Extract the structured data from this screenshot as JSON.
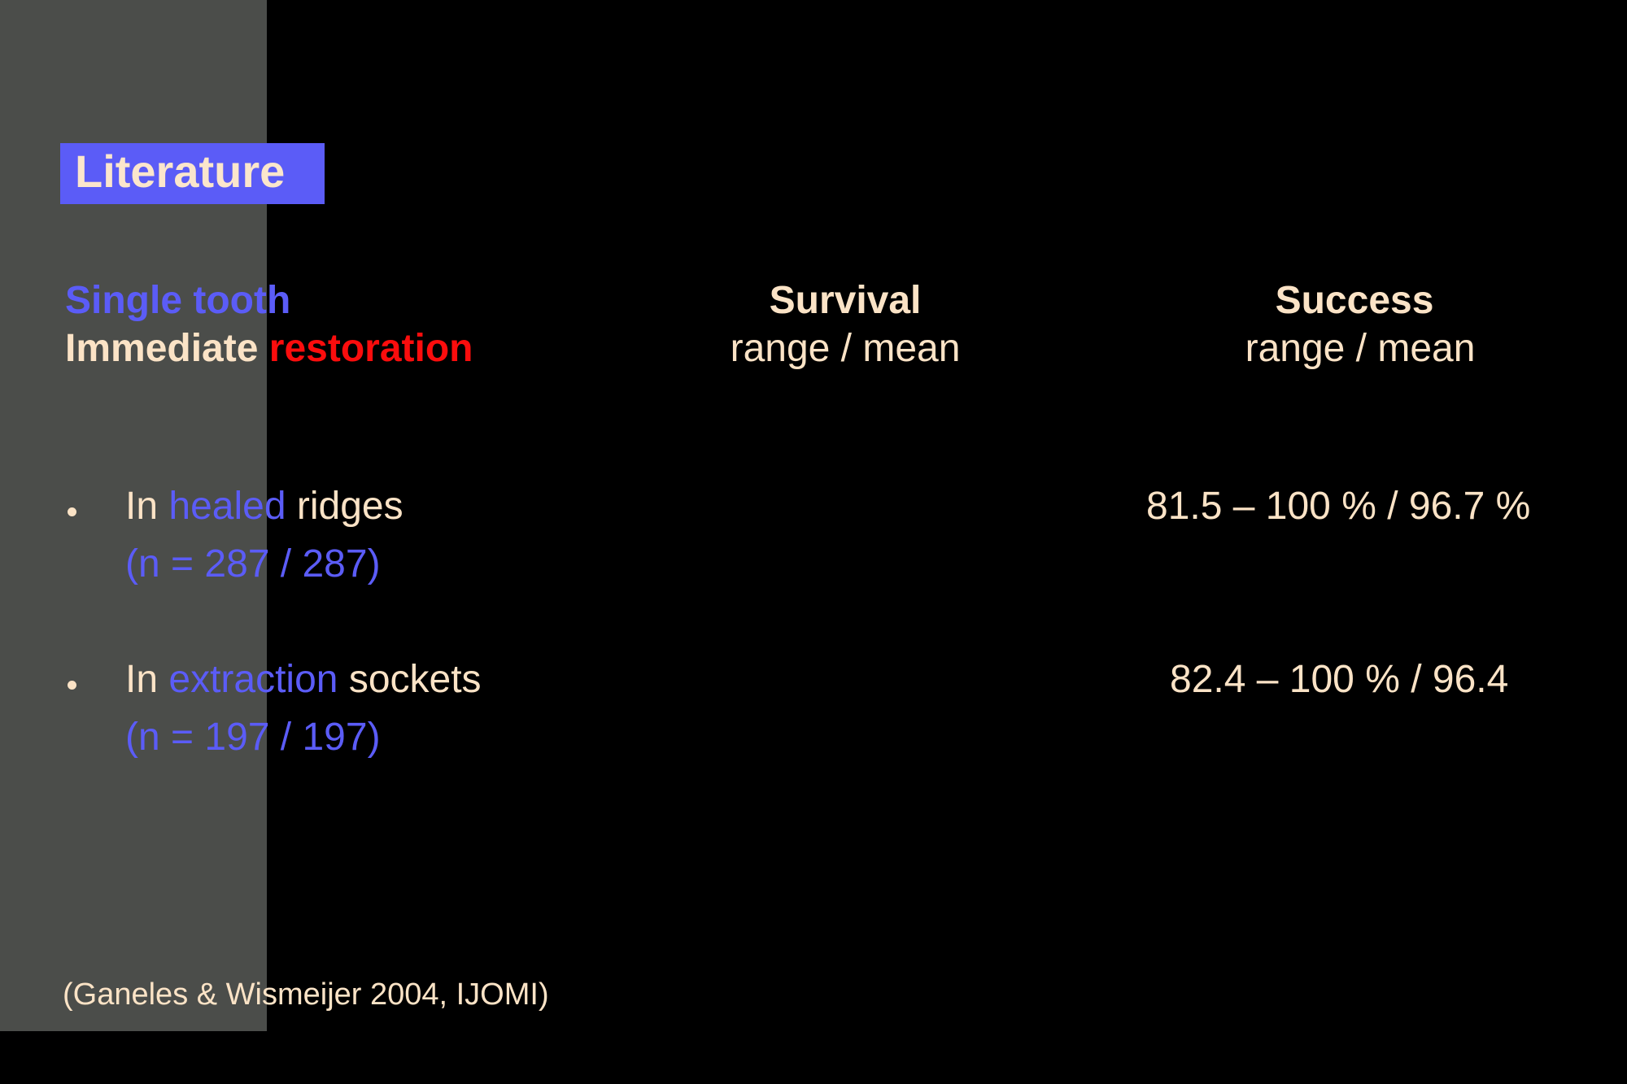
{
  "title": "Literature",
  "heading": {
    "line1": "Single tooth",
    "line2_part1": "Immediate ",
    "line2_part2": "restoration"
  },
  "columns": [
    {
      "title": "Survival",
      "subtitle": "range / mean"
    },
    {
      "title": "Success",
      "subtitle": "range / mean"
    }
  ],
  "rows": [
    {
      "prefix": "In ",
      "highlight": "healed",
      "suffix": " ridges",
      "n": "(n = 287 / 287)",
      "survival": "",
      "success": "81.5 – 100 % / 96.7 %"
    },
    {
      "prefix": "In ",
      "highlight": "extraction",
      "suffix": " sockets",
      "n": "(n = 197 / 197)",
      "survival": "",
      "success": "82.4 – 100 % / 96.4"
    }
  ],
  "citation": "(Ganeles & Wismeijer 2004, IJOMI)",
  "colors": {
    "background": "#000000",
    "side_panel": "#4b4d4a",
    "title_box": "#5b5cf7",
    "cream_text": "#fbe3c6",
    "blue_text": "#5b5cf7",
    "red_text": "#fb0d0d"
  }
}
